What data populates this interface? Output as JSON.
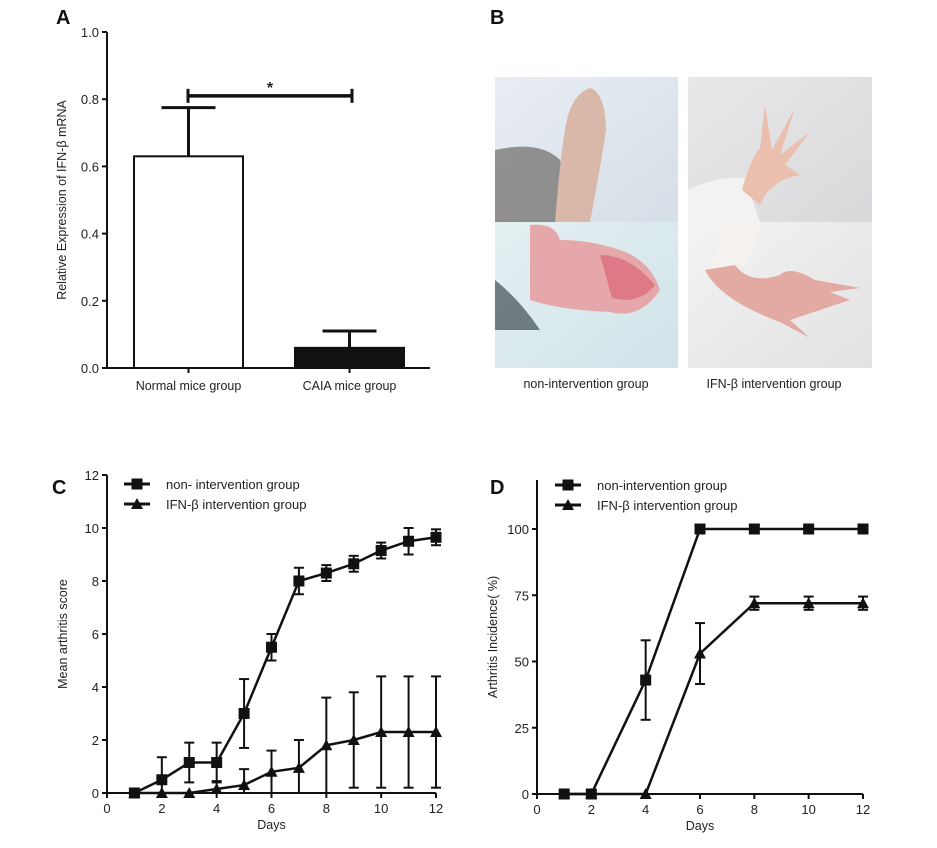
{
  "chart_data": [
    {
      "panel": "A",
      "type": "bar",
      "ylabel": "Relative Expression of IFN-β  mRNA",
      "xlabel": "",
      "categories": [
        "Normal mice group",
        "CAIA mice group"
      ],
      "values": [
        0.63,
        0.06
      ],
      "errors": [
        0.145,
        0.05
      ],
      "bar_colors": [
        "#ffffff",
        "#111111"
      ],
      "ylim": [
        0,
        1.0
      ],
      "yticks": [
        "0.0",
        "0.2",
        "0.4",
        "0.6",
        "0.8",
        "1.0"
      ],
      "significance": {
        "between": [
          0,
          1
        ],
        "level": 0.81,
        "label": "*"
      },
      "grid": false
    },
    {
      "panel": "B",
      "type": "image-panel",
      "captions": [
        "non-intervention group",
        "IFN-β  intervention group"
      ]
    },
    {
      "panel": "C",
      "type": "line",
      "xlabel": "Days",
      "ylabel": "Mean  arthritis  score",
      "xlim": [
        0,
        12
      ],
      "ylim": [
        0,
        12
      ],
      "xticks": [
        "0",
        "2",
        "4",
        "6",
        "8",
        "10",
        "12"
      ],
      "yticks": [
        "0",
        "2",
        "4",
        "6",
        "8",
        "10",
        "12"
      ],
      "legend_position": "top-left",
      "grid": false,
      "series": [
        {
          "name": "non- intervention group",
          "marker": "square",
          "x": [
            1,
            2,
            3,
            4,
            5,
            6,
            7,
            8,
            9,
            10,
            11,
            12
          ],
          "y": [
            0,
            0.5,
            1.15,
            1.15,
            3.0,
            5.5,
            8.0,
            8.3,
            8.65,
            9.15,
            9.5,
            9.65
          ],
          "err": [
            0,
            0.85,
            0.75,
            0.75,
            1.3,
            0.5,
            0.5,
            0.3,
            0.3,
            0.3,
            0.5,
            0.3
          ]
        },
        {
          "name": "IFN-β intervention group",
          "marker": "triangle",
          "x": [
            1,
            2,
            3,
            4,
            5,
            6,
            7,
            8,
            9,
            10,
            11,
            12
          ],
          "y": [
            0,
            0,
            0,
            0.15,
            0.3,
            0.8,
            0.95,
            1.8,
            2.0,
            2.3,
            2.3,
            2.3
          ],
          "err": [
            0,
            0,
            0,
            0.3,
            0.6,
            0.8,
            1.05,
            1.8,
            1.8,
            2.1,
            2.1,
            2.1
          ]
        }
      ]
    },
    {
      "panel": "D",
      "type": "line",
      "xlabel": "Days",
      "ylabel": "Arthritis Incidence( %)",
      "xlim": [
        0,
        12
      ],
      "ylim": [
        0,
        118
      ],
      "xticks": [
        "0",
        "2",
        "4",
        "6",
        "8",
        "10",
        "12"
      ],
      "yticks": [
        "0",
        "25",
        "50",
        "75",
        "100"
      ],
      "legend_position": "top-left",
      "grid": false,
      "series": [
        {
          "name": "non-intervention group",
          "marker": "square",
          "x": [
            1,
            2,
            4,
            6,
            8,
            10,
            12
          ],
          "y": [
            0,
            0,
            43,
            100,
            100,
            100,
            100
          ],
          "err": [
            0,
            0,
            15,
            0,
            0,
            0,
            0
          ]
        },
        {
          "name": "IFN-β  intervention group",
          "marker": "triangle",
          "x": [
            1,
            2,
            4,
            6,
            8,
            10,
            12
          ],
          "y": [
            0,
            0,
            0,
            53,
            72,
            72,
            72
          ],
          "err": [
            0,
            0,
            0,
            11.5,
            2.5,
            2.5,
            2.5
          ]
        }
      ]
    }
  ],
  "panel_labels": [
    "A",
    "B",
    "C",
    "D"
  ]
}
